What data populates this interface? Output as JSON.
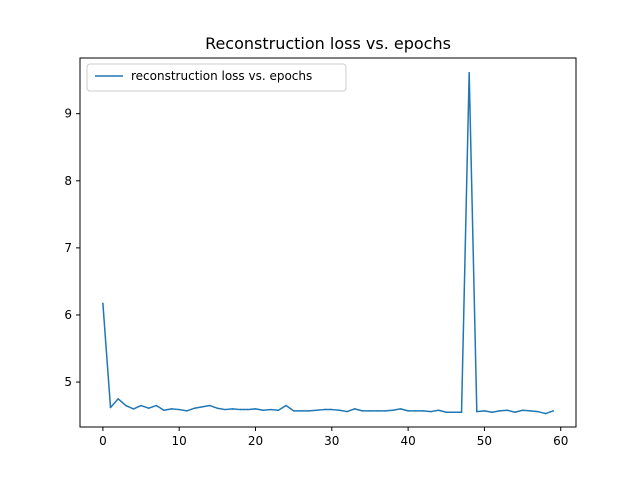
{
  "chart_data": {
    "type": "line",
    "title": "Reconstruction loss vs. epochs",
    "xlabel": "",
    "ylabel": "",
    "xlim": [
      -3,
      62
    ],
    "ylim": [
      4.33,
      9.83
    ],
    "xticks": [
      0,
      10,
      20,
      30,
      40,
      50,
      60
    ],
    "yticks": [
      5,
      6,
      7,
      8,
      9
    ],
    "grid": false,
    "legend": {
      "placement": "top-left"
    },
    "series": [
      {
        "name": "reconstruction loss vs. epochs",
        "color": "#1f77b4",
        "x": [
          0,
          1,
          2,
          3,
          4,
          5,
          6,
          7,
          8,
          9,
          10,
          11,
          12,
          13,
          14,
          15,
          16,
          17,
          18,
          19,
          20,
          21,
          22,
          23,
          24,
          25,
          26,
          27,
          28,
          29,
          30,
          31,
          32,
          33,
          34,
          35,
          36,
          37,
          38,
          39,
          40,
          41,
          42,
          43,
          44,
          45,
          46,
          47,
          48,
          49,
          50,
          51,
          52,
          53,
          54,
          55,
          56,
          57,
          58,
          59
        ],
        "y": [
          6.17,
          4.62,
          4.75,
          4.65,
          4.6,
          4.65,
          4.61,
          4.65,
          4.58,
          4.6,
          4.59,
          4.57,
          4.61,
          4.63,
          4.65,
          4.61,
          4.59,
          4.6,
          4.59,
          4.59,
          4.6,
          4.58,
          4.59,
          4.58,
          4.65,
          4.57,
          4.57,
          4.57,
          4.58,
          4.59,
          4.59,
          4.58,
          4.56,
          4.6,
          4.57,
          4.57,
          4.57,
          4.57,
          4.58,
          4.6,
          4.57,
          4.57,
          4.57,
          4.56,
          4.58,
          4.55,
          4.55,
          4.55,
          9.61,
          4.56,
          4.57,
          4.55,
          4.57,
          4.58,
          4.55,
          4.58,
          4.57,
          4.56,
          4.53,
          4.57
        ]
      }
    ]
  }
}
